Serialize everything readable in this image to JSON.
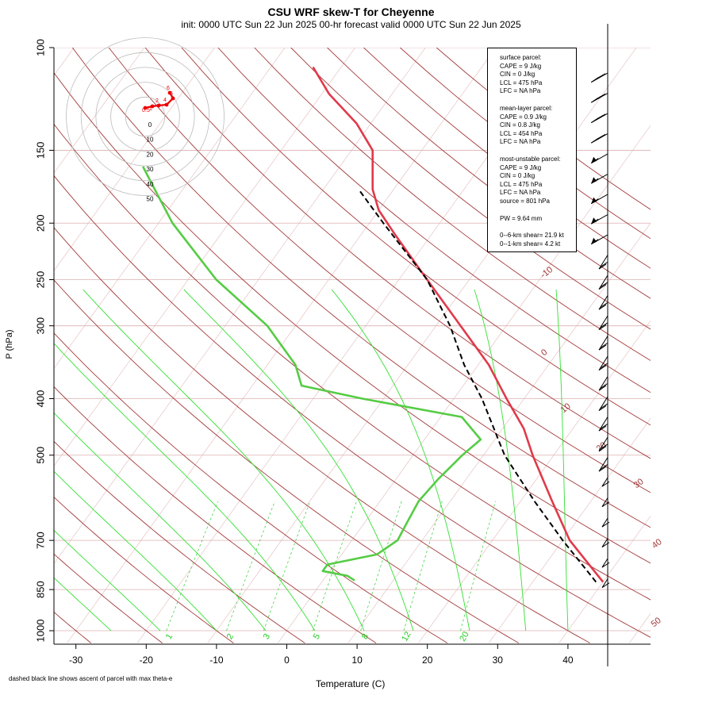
{
  "title": "CSU WRF skew-T for Cheyenne",
  "subtitle": "init: 0000 UTC Sun 22 Jun 2025     00-hr forecast valid 0000 UTC Sun 22 Jun 2025",
  "footnote": "dashed black line shows ascent of parcel with max theta-e",
  "stats_box": {
    "surface_header": "surface parcel:",
    "surface_cape": "CAPE = 9 J/kg",
    "surface_cin": "CIN = 0 J/kg",
    "surface_lcl": "LCL = 475 hPa",
    "surface_lfc": "LFC = NA hPa",
    "mean_header": "mean-layer parcel:",
    "mean_cape": "CAPE = 0.9 J/kg",
    "mean_cin": "CIN = 0.8 J/kg",
    "mean_lcl": "LCL = 454 hPa",
    "mean_lfc": "LFC = NA hPa",
    "mu_header": "most-unstable parcel:",
    "mu_cape": "CAPE = 9 J/kg",
    "mu_cin": "CIN = 0 J/kg",
    "mu_lcl": "LCL = 475 hPa",
    "mu_lfc": "LFC = NA hPa",
    "mu_source": "source = 801 hPa",
    "pw": "PW =  9.64 mm",
    "shear_6km": "0--6-km shear= 21.9 kt",
    "shear_1km": "0--1-km shear= 4.2 kt"
  },
  "chart_data": {
    "type": "line",
    "title": "CSU WRF skew-T for Cheyenne",
    "xlabel": "Temperature (C)",
    "ylabel": "P (hPa)",
    "x_ticks": [
      -30,
      -20,
      -10,
      0,
      10,
      20,
      30,
      40
    ],
    "y_ticks": [
      100,
      150,
      200,
      250,
      300,
      400,
      500,
      700,
      850,
      1000
    ],
    "xlim": [
      -33,
      40
    ],
    "ylim_hpa": [
      1000,
      100
    ],
    "y_scale": "log",
    "dry_adiabat_labels": [
      "-10",
      "0",
      "10",
      "20",
      "30",
      "40",
      "50"
    ],
    "mixing_ratio_labels": [
      "1",
      "2",
      "3",
      "5",
      "8",
      "12",
      "20"
    ],
    "series": [
      {
        "id": "temperature",
        "color": "#e03a4a",
        "points": [
          {
            "p": 825,
            "t": 40.0
          },
          {
            "p": 700,
            "t": 31.0
          },
          {
            "p": 600,
            "t": 24.5
          },
          {
            "p": 500,
            "t": 17.0
          },
          {
            "p": 450,
            "t": 13.0
          },
          {
            "p": 400,
            "t": 7.5
          },
          {
            "p": 350,
            "t": 1.5
          },
          {
            "p": 300,
            "t": -6.5
          },
          {
            "p": 250,
            "t": -16.0
          },
          {
            "p": 210,
            "t": -25.0
          },
          {
            "p": 190,
            "t": -30.0
          },
          {
            "p": 175,
            "t": -33.0
          },
          {
            "p": 150,
            "t": -37.0
          },
          {
            "p": 135,
            "t": -42.0
          },
          {
            "p": 120,
            "t": -49.0
          },
          {
            "p": 108,
            "t": -54.0
          }
        ]
      },
      {
        "id": "dewpoint",
        "color": "#55cc44",
        "points": [
          {
            "p": 820,
            "t": 4.5
          },
          {
            "p": 805,
            "t": 3.0
          },
          {
            "p": 790,
            "t": -1.0
          },
          {
            "p": 770,
            "t": -1.0
          },
          {
            "p": 740,
            "t": 5.0
          },
          {
            "p": 700,
            "t": 6.5
          },
          {
            "p": 650,
            "t": 6.0
          },
          {
            "p": 600,
            "t": 5.5
          },
          {
            "p": 550,
            "t": 6.0
          },
          {
            "p": 500,
            "t": 7.0
          },
          {
            "p": 470,
            "t": 8.0
          },
          {
            "p": 430,
            "t": 3.0
          },
          {
            "p": 400,
            "t": -13.0
          },
          {
            "p": 380,
            "t": -23.0
          },
          {
            "p": 350,
            "t": -26.0
          },
          {
            "p": 300,
            "t": -34.0
          },
          {
            "p": 250,
            "t": -46.0
          },
          {
            "p": 200,
            "t": -58.0
          },
          {
            "p": 175,
            "t": -64.0
          },
          {
            "p": 160,
            "t": -68.0
          }
        ]
      },
      {
        "id": "parcel_max_theta_e",
        "color": "#000000",
        "style": "dashed",
        "points": [
          {
            "p": 825,
            "t": 39.0
          },
          {
            "p": 700,
            "t": 30.0
          },
          {
            "p": 600,
            "t": 22.0
          },
          {
            "p": 500,
            "t": 13.0
          },
          {
            "p": 470,
            "t": 10.5
          },
          {
            "p": 400,
            "t": 4.0
          },
          {
            "p": 350,
            "t": -2.0
          },
          {
            "p": 300,
            "t": -8.0
          },
          {
            "p": 250,
            "t": -16.0
          },
          {
            "p": 200,
            "t": -28.0
          },
          {
            "p": 175,
            "t": -35.0
          }
        ]
      }
    ],
    "hodograph": {
      "rings": [
        0,
        10,
        20,
        30,
        40,
        50
      ],
      "point_labels": [
        "0.5",
        "1",
        "2",
        "4",
        "5",
        "6"
      ]
    }
  }
}
